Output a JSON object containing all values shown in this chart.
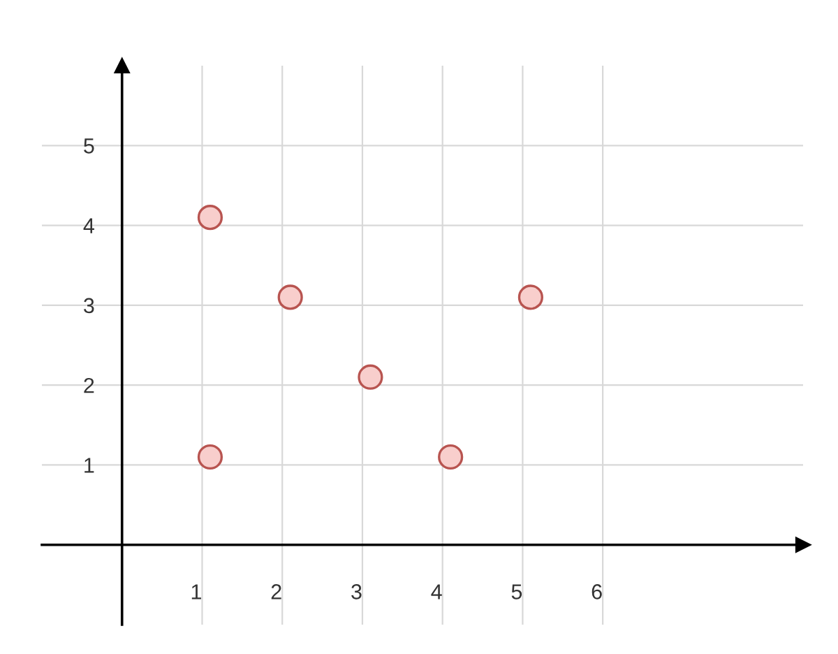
{
  "chart_data": {
    "type": "scatter",
    "x": [
      1.1,
      1.1,
      2.1,
      3.1,
      4.1,
      5.1
    ],
    "series": [
      {
        "color": "#f8cecc",
        "values": [
          4.1,
          1.1,
          3.1,
          2.1,
          1.1,
          3.1
        ]
      }
    ],
    "xlim": [
      -1,
      8.5
    ],
    "ylim": [
      -1,
      6
    ],
    "xticks": [
      1,
      2,
      3,
      4,
      5,
      6
    ],
    "yticks": [
      1,
      2,
      3,
      4,
      5
    ],
    "grid": true,
    "marker": "circle"
  }
}
